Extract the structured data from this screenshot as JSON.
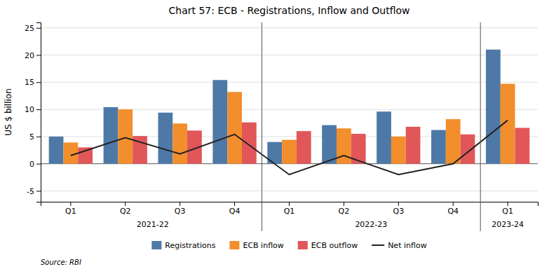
{
  "chart_data": {
    "type": "bar",
    "title": "Chart 57: ECB - Registrations, Inflow and Outflow",
    "ylabel": "US $ billion",
    "source": "Source: RBI",
    "categories": [
      "Q1",
      "Q2",
      "Q3",
      "Q4",
      "Q1",
      "Q2",
      "Q3",
      "Q4",
      "Q1"
    ],
    "category_groups": [
      {
        "label": "2021-22",
        "start": 0,
        "end": 3
      },
      {
        "label": "2022-23",
        "start": 4,
        "end": 7
      },
      {
        "label": "2023-24",
        "start": 8,
        "end": 8
      }
    ],
    "series": [
      {
        "name": "Registrations",
        "type": "bar",
        "values": [
          5.0,
          10.4,
          9.4,
          15.4,
          4.0,
          7.1,
          9.6,
          6.2,
          21.0
        ]
      },
      {
        "name": "ECB inflow",
        "type": "bar",
        "values": [
          3.9,
          10.0,
          7.4,
          13.2,
          4.4,
          6.5,
          5.0,
          8.2,
          14.7
        ]
      },
      {
        "name": "ECB outflow",
        "type": "bar",
        "values": [
          3.0,
          5.1,
          6.1,
          7.6,
          6.0,
          5.5,
          6.8,
          5.4,
          6.6
        ]
      },
      {
        "name": "Net inflow",
        "type": "line",
        "values": [
          1.5,
          4.8,
          1.8,
          5.4,
          -2.0,
          1.5,
          -2.0,
          0.0,
          8.0
        ]
      }
    ],
    "ylim": [
      -7.0,
      26
    ],
    "yticks": [
      -5,
      0,
      5,
      10,
      15,
      20,
      25
    ],
    "grid": true,
    "legend": "bottom"
  }
}
